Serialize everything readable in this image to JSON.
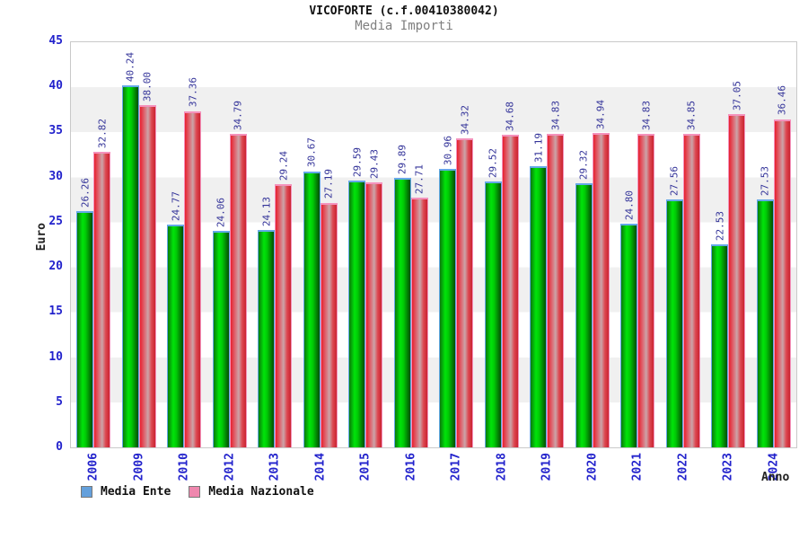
{
  "chart_data": {
    "type": "bar",
    "title": "VICOFORTE (c.f.00410380042)",
    "subtitle": "Media Importi",
    "xlabel": "Anno",
    "ylabel": "Euro",
    "ylim": [
      0,
      45
    ],
    "yticks": [
      0,
      5,
      10,
      15,
      20,
      25,
      30,
      35,
      40,
      45
    ],
    "grid": "horizontal-bands",
    "band_color": "#f0f0f0",
    "axis_label_color": "#2222cc",
    "value_label_color": "#333399",
    "legend_position": "bottom-left",
    "categories": [
      "2006",
      "2009",
      "2010",
      "2012",
      "2013",
      "2014",
      "2015",
      "2016",
      "2017",
      "2018",
      "2019",
      "2020",
      "2021",
      "2022",
      "2023",
      "2024"
    ],
    "series": [
      {
        "name": "Media Ente",
        "values": [
          26.26,
          40.24,
          24.77,
          24.06,
          24.13,
          30.67,
          29.59,
          29.89,
          30.96,
          29.52,
          31.19,
          29.32,
          24.8,
          27.56,
          22.53,
          27.53
        ],
        "legend_color": "#64a0dc",
        "border_color": "#64a8e8",
        "gradient_stops": [
          [
            "#0b7a0b",
            0
          ],
          [
            "#00e40a",
            35
          ],
          [
            "#00cc05",
            55
          ],
          [
            "#044d04",
            100
          ]
        ]
      },
      {
        "name": "Media Nazionale",
        "values": [
          32.82,
          38.0,
          37.36,
          34.79,
          29.24,
          27.19,
          29.43,
          27.71,
          34.32,
          34.68,
          34.83,
          34.94,
          34.83,
          34.85,
          37.05,
          36.46
        ],
        "legend_color": "#ef87ae",
        "border_color": "#f492bc",
        "gradient_stops": [
          [
            "#e7202e",
            0
          ],
          [
            "#dd6b75",
            30
          ],
          [
            "#cba4a8",
            52
          ],
          [
            "#dd4751",
            75
          ],
          [
            "#c92430",
            100
          ]
        ]
      }
    ]
  },
  "legend": {
    "items": [
      {
        "label": "Media Ente",
        "color": "#64a0dc"
      },
      {
        "label": "Media Nazionale",
        "color": "#ef87ae"
      }
    ]
  }
}
